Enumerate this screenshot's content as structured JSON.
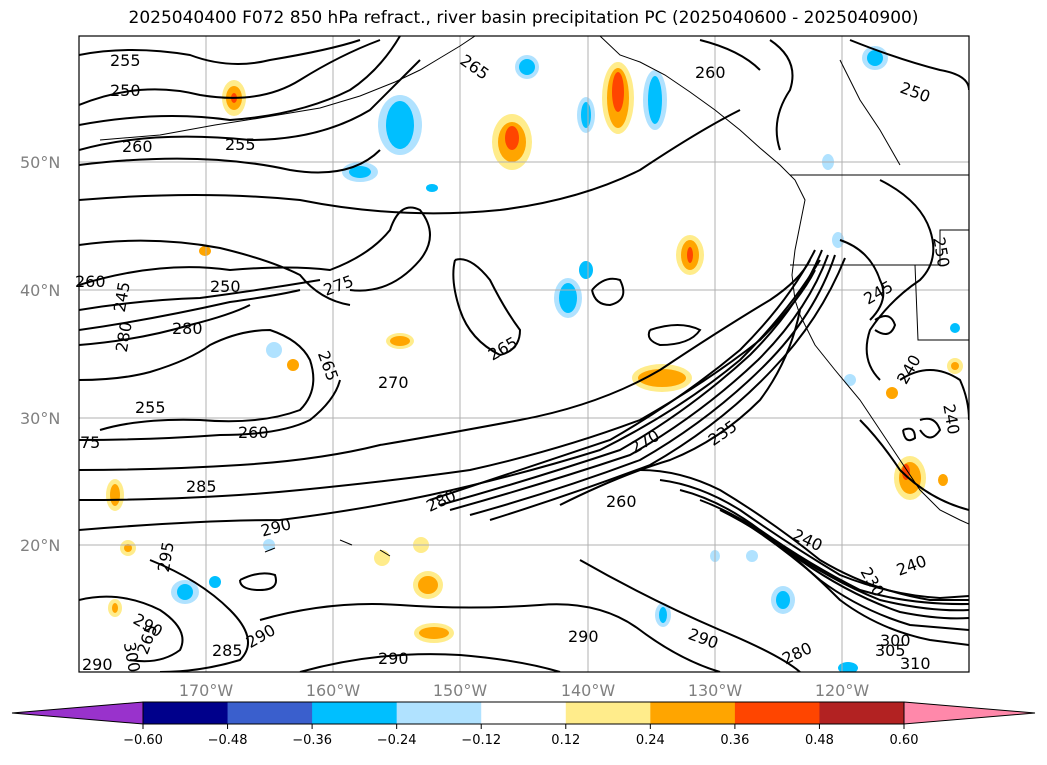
{
  "title": "2025040400 F072 850 hPa refract., river basin precipitation PC (2025040600 - 2025040900)",
  "lat_labels": [
    "50°N",
    "40°N",
    "30°N",
    "20°N"
  ],
  "lon_labels": [
    "170°W",
    "160°W",
    "150°W",
    "140°W",
    "130°W",
    "120°W"
  ],
  "contour_labels": [
    "255",
    "250",
    "260",
    "255",
    "265",
    "260",
    "250",
    "260",
    "250",
    "245",
    "250",
    "275",
    "280",
    "280",
    "265",
    "270",
    "265",
    "245",
    "255",
    "260",
    "270",
    "235",
    "240",
    "240",
    "285",
    "280",
    "260",
    "290",
    "295",
    "290",
    "240",
    "290",
    "230",
    "285",
    "290",
    "280",
    "290",
    "290",
    "300",
    "305",
    "310",
    "75",
    "290",
    "300",
    "265",
    "240"
  ],
  "colorbar": {
    "ticks": [
      "−0.60",
      "−0.48",
      "−0.36",
      "−0.24",
      "−0.12",
      "0.12",
      "0.24",
      "0.36",
      "0.48",
      "0.60"
    ],
    "colors": [
      "#9932cc",
      "#00008b",
      "#3a5fcd",
      "#00bfff",
      "#b0e2ff",
      "#ffffff",
      "#ffec8b",
      "#ffa500",
      "#ff4500",
      "#b22222",
      "#ff88aa"
    ]
  }
}
